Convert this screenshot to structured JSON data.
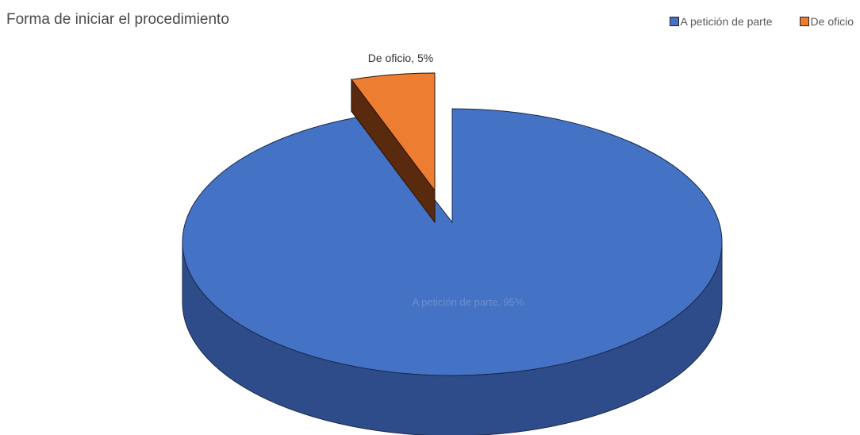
{
  "chart_data": {
    "type": "pie",
    "title": "Forma de iniciar el procedimiento",
    "categories": [
      "A petición de parte",
      "De oficio"
    ],
    "values": [
      95,
      5
    ],
    "data_labels": [
      "A petición de parte, 95%",
      "De oficio, 5%"
    ],
    "colors": [
      "#4472c4",
      "#ed7d31"
    ],
    "dark_colors": [
      "#2e4c8a",
      "#5a2a0f"
    ],
    "legend_position": "top-right",
    "style": "3d-exploded"
  }
}
